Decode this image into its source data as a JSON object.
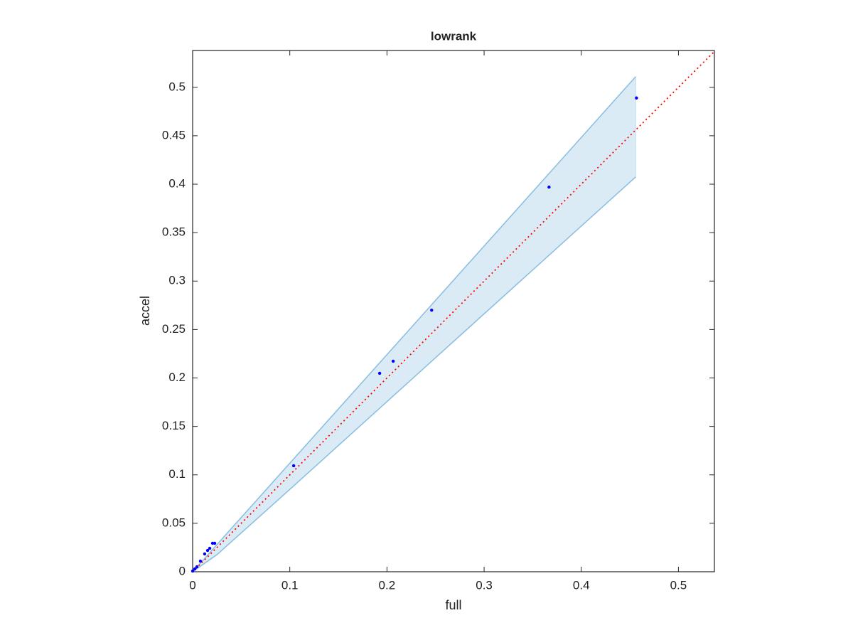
{
  "chart_data": {
    "type": "scatter",
    "title": "lowrank",
    "x_label": "full",
    "y_label": "accel",
    "x": [
      0.4568,
      0.3668,
      0.246,
      0.2064,
      0.1925,
      0.104,
      0.0227,
      0.0205,
      0.0176,
      0.0154,
      0.0124,
      0.008,
      0.0044,
      0.0022,
      0
    ],
    "y": [
      0.489,
      0.397,
      0.27,
      0.2173,
      0.2048,
      0.1094,
      0.0294,
      0.0294,
      0.0242,
      0.022,
      0.0184,
      0.011,
      0.0051,
      0.0029,
      0.0007
    ],
    "color": "#0000ff",
    "band": {
      "x": [
        0,
        0.025,
        0.1,
        0.456
      ],
      "upper": [
        0,
        0.028,
        0.112,
        0.511
      ],
      "lower": [
        0,
        0.0176,
        0.085,
        0.4075
      ],
      "color": "#88bde0"
    },
    "reference_line": {
      "x": [
        0,
        0.537
      ],
      "y": [
        0,
        0.537
      ],
      "color": "#ff0000"
    },
    "xlim": [
      0,
      0.537
    ],
    "ylim": [
      0,
      0.538
    ],
    "xticks": [
      0,
      0.1,
      0.2,
      0.3,
      0.4,
      0.5
    ],
    "yticks": [
      0,
      0.05,
      0.1,
      0.15,
      0.2,
      0.25,
      0.3,
      0.35,
      0.4,
      0.45,
      0.5
    ],
    "grid": false
  }
}
